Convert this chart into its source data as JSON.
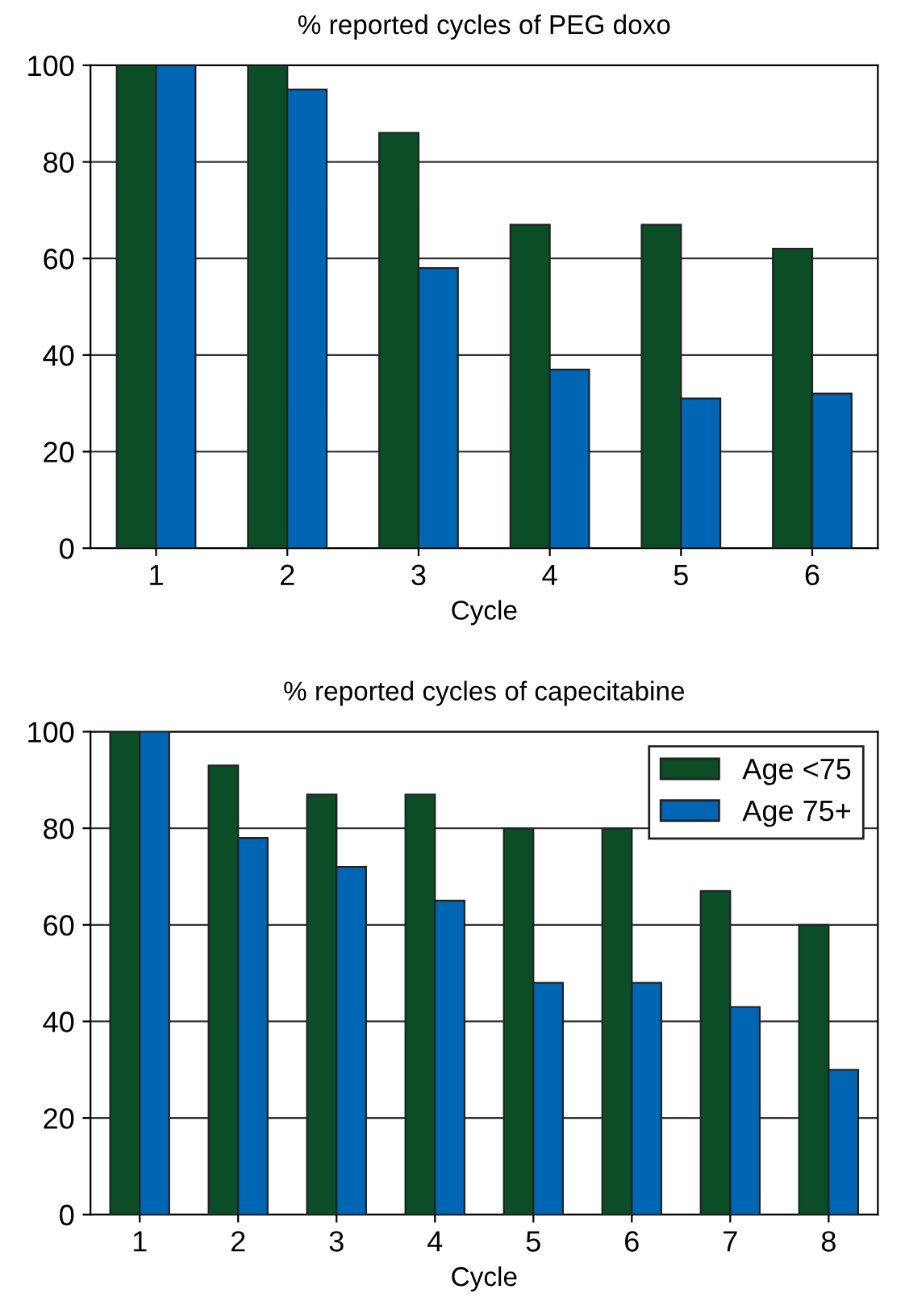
{
  "chart_data": [
    {
      "type": "bar",
      "title": "% reported cycles of PEG doxo",
      "xlabel": "Cycle",
      "categories": [
        "1",
        "2",
        "3",
        "4",
        "5",
        "6"
      ],
      "series": [
        {
          "color": "#0a4d26",
          "values": [
            100,
            100,
            86,
            67,
            67,
            62
          ]
        },
        {
          "color": "#0066b3",
          "values": [
            100,
            95,
            58,
            37,
            31,
            32
          ]
        }
      ],
      "ylim": [
        0,
        100
      ],
      "yticks": [
        0,
        20,
        40,
        60,
        80,
        100
      ],
      "grid": "y"
    },
    {
      "type": "bar",
      "title": "% reported cycles of capecitabine",
      "xlabel": "Cycle",
      "categories": [
        "1",
        "2",
        "3",
        "4",
        "5",
        "6",
        "7",
        "8"
      ],
      "series": [
        {
          "name": "Age <75",
          "color": "#0a4d26",
          "values": [
            100,
            93,
            87,
            87,
            80,
            80,
            67,
            60
          ]
        },
        {
          "name": "Age 75+",
          "color": "#0066b3",
          "values": [
            100,
            78,
            72,
            65,
            48,
            48,
            43,
            30
          ]
        }
      ],
      "ylim": [
        0,
        100
      ],
      "yticks": [
        0,
        20,
        40,
        60,
        80,
        100
      ],
      "grid": "y",
      "legend": "top right"
    }
  ]
}
